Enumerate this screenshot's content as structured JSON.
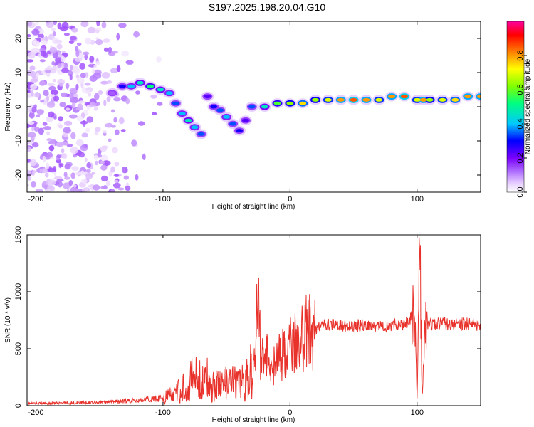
{
  "title": "S197.2025.198.20.04.G10",
  "chart_data": [
    {
      "type": "heatmap",
      "xlabel": "Height of straight line (km)",
      "ylabel": "Frequency (Hz)",
      "xlim": [
        -207,
        150
      ],
      "ylim": [
        -25,
        25
      ],
      "xticks": [
        -200,
        -100,
        0,
        100
      ],
      "yticks": [
        -20,
        -10,
        0,
        10,
        20
      ],
      "colorbar": {
        "label": "Normalized spectral amplitude",
        "range": [
          0.0,
          1.0
        ],
        "ticks": [
          0.0,
          0.2,
          0.4,
          0.6,
          0.8
        ],
        "tick_labels": [
          "0.0",
          "0.2",
          "0.4",
          "0.6",
          "0.8"
        ],
        "colors": [
          "#ffffff",
          "#e8d0ff",
          "#b070ff",
          "#7a00ff",
          "#0000ff",
          "#00c8ff",
          "#00ff80",
          "#80ff00",
          "#ffff00",
          "#ff8000",
          "#ff0000",
          "#ff00a0"
        ]
      },
      "ridge": [
        {
          "x": -140,
          "y": 4,
          "a": 0.2
        },
        {
          "x": -132,
          "y": 6,
          "a": 0.35
        },
        {
          "x": -125,
          "y": 6,
          "a": 0.45
        },
        {
          "x": -118,
          "y": 7,
          "a": 0.5
        },
        {
          "x": -110,
          "y": 6,
          "a": 0.55
        },
        {
          "x": -102,
          "y": 5,
          "a": 0.5
        },
        {
          "x": -95,
          "y": 4,
          "a": 0.45
        },
        {
          "x": -90,
          "y": 1,
          "a": 0.4
        },
        {
          "x": -85,
          "y": -2,
          "a": 0.45
        },
        {
          "x": -80,
          "y": -4,
          "a": 0.5
        },
        {
          "x": -75,
          "y": -6,
          "a": 0.45
        },
        {
          "x": -70,
          "y": -8,
          "a": 0.4
        },
        {
          "x": -65,
          "y": 3,
          "a": 0.3
        },
        {
          "x": -60,
          "y": 0,
          "a": 0.35
        },
        {
          "x": -55,
          "y": -1,
          "a": 0.4
        },
        {
          "x": -50,
          "y": -3,
          "a": 0.45
        },
        {
          "x": -45,
          "y": -5,
          "a": 0.4
        },
        {
          "x": -40,
          "y": -7,
          "a": 0.35
        },
        {
          "x": -35,
          "y": -4,
          "a": 0.3
        },
        {
          "x": -30,
          "y": 0,
          "a": 0.4
        },
        {
          "x": -20,
          "y": 0,
          "a": 0.5
        },
        {
          "x": -10,
          "y": 1,
          "a": 0.6
        },
        {
          "x": 0,
          "y": 1,
          "a": 0.65
        },
        {
          "x": 10,
          "y": 1,
          "a": 0.75
        },
        {
          "x": 20,
          "y": 2,
          "a": 0.65
        },
        {
          "x": 30,
          "y": 2,
          "a": 0.7
        },
        {
          "x": 40,
          "y": 2,
          "a": 0.8
        },
        {
          "x": 50,
          "y": 2,
          "a": 0.85
        },
        {
          "x": 60,
          "y": 2,
          "a": 0.8
        },
        {
          "x": 70,
          "y": 2,
          "a": 0.7
        },
        {
          "x": 80,
          "y": 3,
          "a": 0.8
        },
        {
          "x": 90,
          "y": 3,
          "a": 0.85
        },
        {
          "x": 100,
          "y": 2,
          "a": 0.7
        },
        {
          "x": 105,
          "y": 2,
          "a": 0.8
        },
        {
          "x": 110,
          "y": 2,
          "a": 0.65
        },
        {
          "x": 120,
          "y": 2,
          "a": 0.7
        },
        {
          "x": 130,
          "y": 2,
          "a": 0.75
        },
        {
          "x": 140,
          "y": 3,
          "a": 0.8
        },
        {
          "x": 150,
          "y": 3,
          "a": 0.8
        }
      ]
    },
    {
      "type": "line",
      "xlabel": "Height of straight line (km)",
      "ylabel": "SNR (10 * v/v)",
      "xlim": [
        -207,
        150
      ],
      "ylim": [
        0,
        1500
      ],
      "xticks": [
        -200,
        -100,
        0,
        100
      ],
      "yticks": [
        0,
        500,
        1000,
        1500
      ],
      "color": "#e8322b",
      "series": [
        {
          "x": [
            -207,
            -190,
            -170,
            -150,
            -130,
            -110,
            -100,
            -90,
            -85,
            -80,
            -75,
            -70,
            -65,
            -60,
            -55,
            -50,
            -45,
            -40,
            -35,
            -30,
            -27,
            -25,
            -23,
            -20,
            -15,
            -10,
            -5,
            0,
            5,
            10,
            15,
            20,
            25,
            30,
            40,
            50,
            60,
            70,
            80,
            90,
            95,
            98,
            100,
            102,
            104,
            106,
            110,
            120,
            130,
            140,
            150
          ],
          "y": [
            20,
            20,
            25,
            30,
            40,
            55,
            70,
            100,
            150,
            200,
            250,
            200,
            230,
            180,
            200,
            180,
            200,
            170,
            220,
            300,
            500,
            1040,
            400,
            450,
            380,
            400,
            450,
            500,
            550,
            600,
            650,
            680,
            700,
            710,
            710,
            700,
            710,
            700,
            710,
            720,
            760,
            820,
            60,
            1500,
            50,
            700,
            720,
            720,
            720,
            720,
            700
          ]
        }
      ]
    }
  ]
}
